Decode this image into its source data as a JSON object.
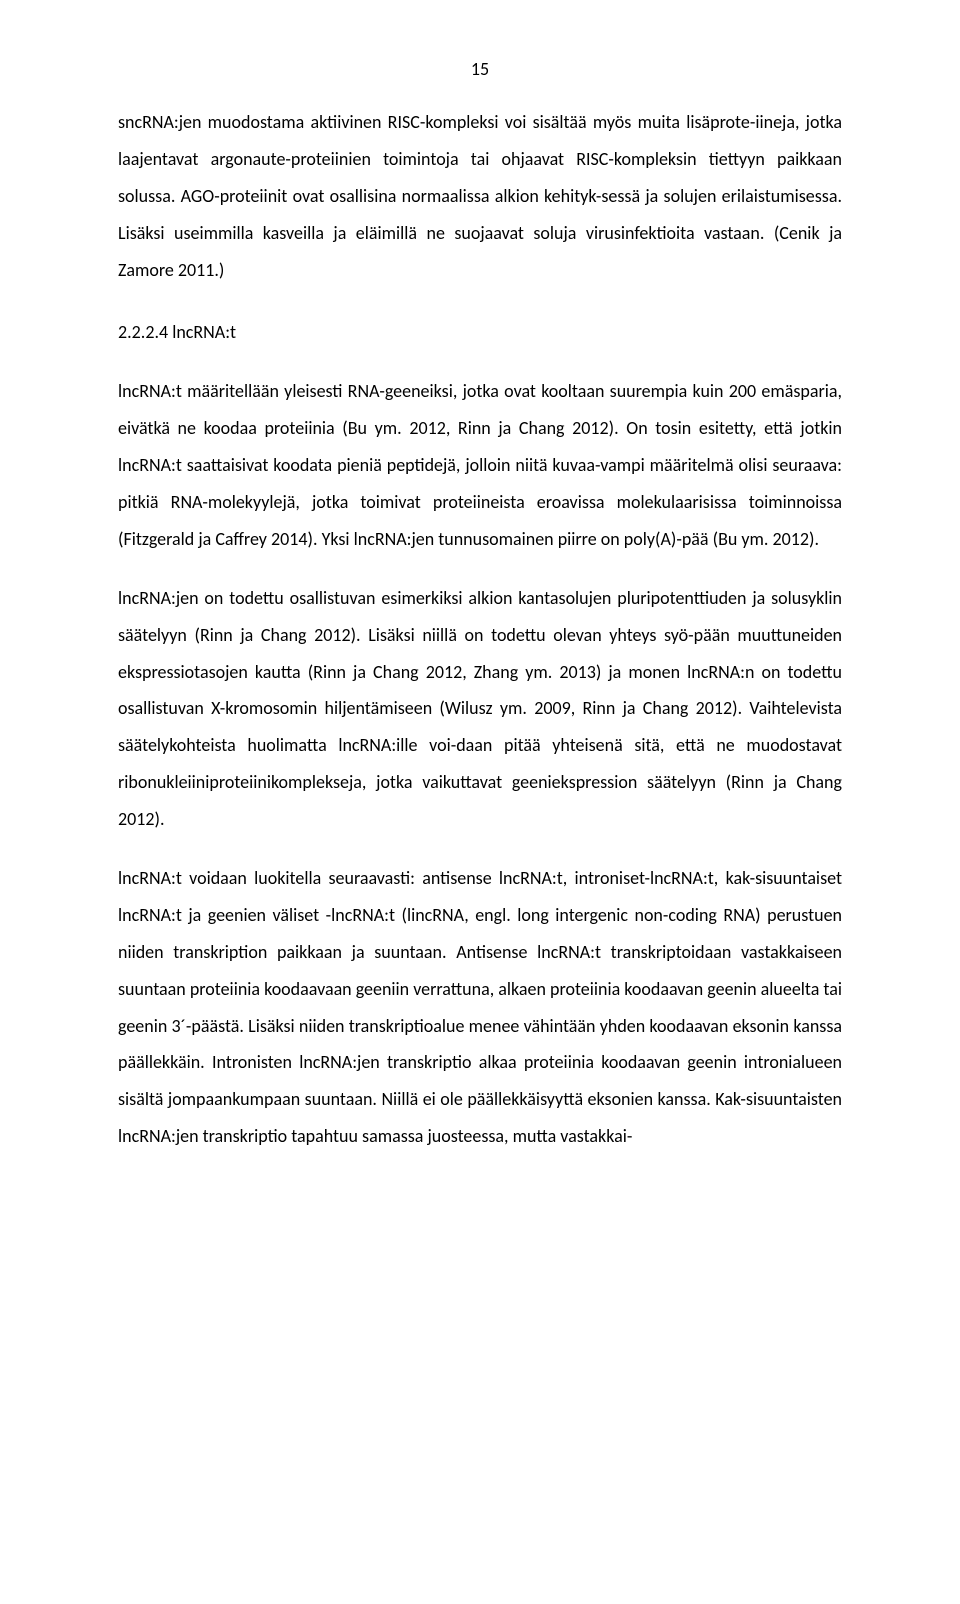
{
  "page_number": "15",
  "typography": {
    "body_fontsize": 18,
    "line_height": 2.05,
    "text_color": "#000000",
    "background_color": "#ffffff",
    "alignment": "justify",
    "font_family": "Calibri"
  },
  "content": {
    "p1": "sncRNA:jen muodostama aktiivinen RISC-kompleksi voi sisältää myös muita lisäprote-iineja, jotka laajentavat argonaute-proteiinien toimintoja tai ohjaavat RISC-kompleksin tiettyyn paikkaan solussa. AGO-proteiinit ovat osallisina normaalissa alkion kehityk-sessä ja solujen erilaistumisessa. Lisäksi useimmilla kasveilla ja eläimillä ne suojaavat soluja virusinfektioita vastaan. (Cenik ja Zamore 2011.)",
    "heading": "2.2.2.4 lncRNA:t",
    "p2": "lncRNA:t määritellään yleisesti RNA-geeneiksi, jotka ovat kooltaan suurempia kuin 200 emäsparia, eivätkä ne koodaa proteiinia (Bu ym. 2012, Rinn ja Chang 2012). On tosin esitetty, että jotkin lncRNA:t saattaisivat koodata pieniä peptidejä, jolloin niitä kuvaa-vampi määritelmä olisi seuraava: pitkiä RNA-molekyylejä, jotka toimivat proteiineista eroavissa molekulaarisissa toiminnoissa (Fitzgerald ja Caffrey 2014). Yksi lncRNA:jen tunnusomainen piirre on poly(A)-pää (Bu ym. 2012).",
    "p3": "lncRNA:jen on todettu osallistuvan esimerkiksi alkion kantasolujen pluripotenttiuden ja solusyklin säätelyyn (Rinn ja Chang 2012). Lisäksi niillä on todettu olevan yhteys syö-pään muuttuneiden ekspressiotasojen kautta (Rinn ja Chang 2012, Zhang ym. 2013) ja monen lncRNA:n on todettu osallistuvan X-kromosomin hiljentämiseen (Wilusz ym. 2009, Rinn ja Chang 2012). Vaihtelevista säätelykohteista huolimatta lncRNA:ille voi-daan pitää yhteisenä sitä, että ne muodostavat ribonukleiiniproteiinikomplekseja, jotka vaikuttavat geeniekspression säätelyyn (Rinn ja Chang 2012).",
    "p4": "lncRNA:t voidaan luokitella seuraavasti: antisense lncRNA:t, introniset-lncRNA:t, kak-sisuuntaiset lncRNA:t ja geenien väliset -lncRNA:t (lincRNA, engl. long intergenic non-coding RNA) perustuen niiden transkription paikkaan ja suuntaan. Antisense lncRNA:t transkriptoidaan vastakkaiseen suuntaan proteiinia koodaavaan geeniin verrattuna, alkaen proteiinia koodaavan geenin alueelta tai geenin 3´-päästä. Lisäksi niiden transkriptioalue menee vähintään yhden koodaavan eksonin kanssa päällekkäin. Intronisten lncRNA:jen transkriptio alkaa proteiinia koodaavan geenin intronialueen sisältä jompaankumpaan suuntaan. Niillä ei ole päällekkäisyyttä eksonien kanssa. Kak-sisuuntaisten lncRNA:jen transkriptio tapahtuu samassa juosteessa, mutta vastakkai-"
  }
}
